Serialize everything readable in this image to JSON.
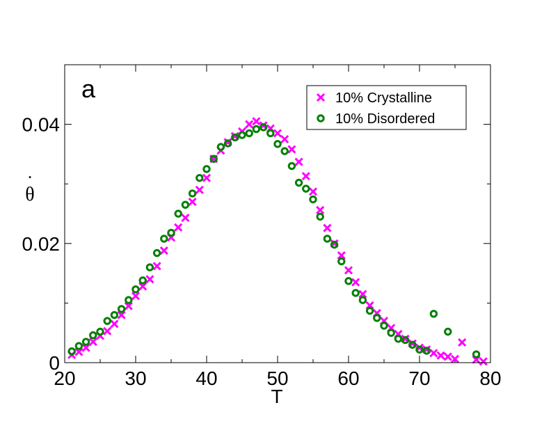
{
  "chart_data": {
    "type": "scatter",
    "panel_label": "a",
    "xlabel": "T",
    "ylabel": "θ",
    "ylabel_dot": "˙",
    "xlim": [
      20,
      80
    ],
    "ylim": [
      0,
      0.05
    ],
    "xticks": [
      20,
      30,
      40,
      50,
      60,
      70,
      80
    ],
    "xtick_labels": [
      "20",
      "30",
      "40",
      "50",
      "60",
      "70",
      "80"
    ],
    "yticks": [
      0,
      0.02,
      0.04
    ],
    "ytick_labels": [
      "0",
      "0.02",
      "0.04"
    ],
    "minor_yticks": [
      0.01,
      0.03
    ],
    "legend_position": "top-right",
    "series": [
      {
        "name": "10% Crystalline",
        "marker": "x",
        "color": "#ff00ff",
        "x": [
          21,
          22,
          23,
          24,
          25,
          26,
          27,
          28,
          29,
          30,
          31,
          32,
          33,
          34,
          35,
          36,
          37,
          38,
          39,
          40,
          41,
          42,
          43,
          44,
          45,
          46,
          47,
          48,
          49,
          50,
          51,
          52,
          53,
          54,
          55,
          56,
          57,
          58,
          59,
          60,
          61,
          62,
          63,
          64,
          65,
          66,
          67,
          68,
          69,
          70,
          71,
          72,
          73,
          74,
          75,
          76,
          78,
          79
        ],
        "y": [
          0.0013,
          0.0018,
          0.0025,
          0.0035,
          0.0045,
          0.0053,
          0.0065,
          0.008,
          0.0095,
          0.0112,
          0.0128,
          0.014,
          0.0162,
          0.0188,
          0.021,
          0.0227,
          0.0243,
          0.027,
          0.029,
          0.031,
          0.0342,
          0.0356,
          0.037,
          0.038,
          0.0388,
          0.04,
          0.0405,
          0.0398,
          0.0393,
          0.0385,
          0.0375,
          0.0358,
          0.0337,
          0.0313,
          0.0287,
          0.0256,
          0.0226,
          0.02,
          0.018,
          0.0155,
          0.0135,
          0.0115,
          0.0096,
          0.0083,
          0.007,
          0.0058,
          0.0048,
          0.004,
          0.0032,
          0.0025,
          0.0022,
          0.0016,
          0.0012,
          0.001,
          0.0006,
          0.0034,
          0.0005,
          0.0002
        ]
      },
      {
        "name": "10% Disordered",
        "marker": "o",
        "color": "#008000",
        "x": [
          21,
          22,
          23,
          24,
          25,
          26,
          27,
          28,
          29,
          30,
          31,
          32,
          33,
          34,
          35,
          36,
          37,
          38,
          39,
          40,
          41,
          42,
          43,
          44,
          45,
          46,
          47,
          48,
          49,
          50,
          51,
          52,
          53,
          54,
          55,
          56,
          57,
          58,
          59,
          60,
          61,
          62,
          63,
          64,
          65,
          66,
          67,
          68,
          69,
          70,
          71,
          72,
          74,
          78
        ],
        "y": [
          0.0019,
          0.0028,
          0.0035,
          0.0046,
          0.0052,
          0.007,
          0.008,
          0.009,
          0.0105,
          0.0123,
          0.0138,
          0.016,
          0.0184,
          0.0208,
          0.0218,
          0.025,
          0.0265,
          0.0284,
          0.031,
          0.0325,
          0.0342,
          0.0362,
          0.0368,
          0.0378,
          0.0382,
          0.0385,
          0.0392,
          0.0395,
          0.0385,
          0.0367,
          0.0355,
          0.033,
          0.0302,
          0.0292,
          0.0274,
          0.0245,
          0.0208,
          0.0198,
          0.017,
          0.0137,
          0.0117,
          0.0105,
          0.0087,
          0.0075,
          0.0062,
          0.005,
          0.004,
          0.0038,
          0.003,
          0.0022,
          0.002,
          0.0082,
          0.0052,
          0.0014
        ]
      }
    ]
  }
}
